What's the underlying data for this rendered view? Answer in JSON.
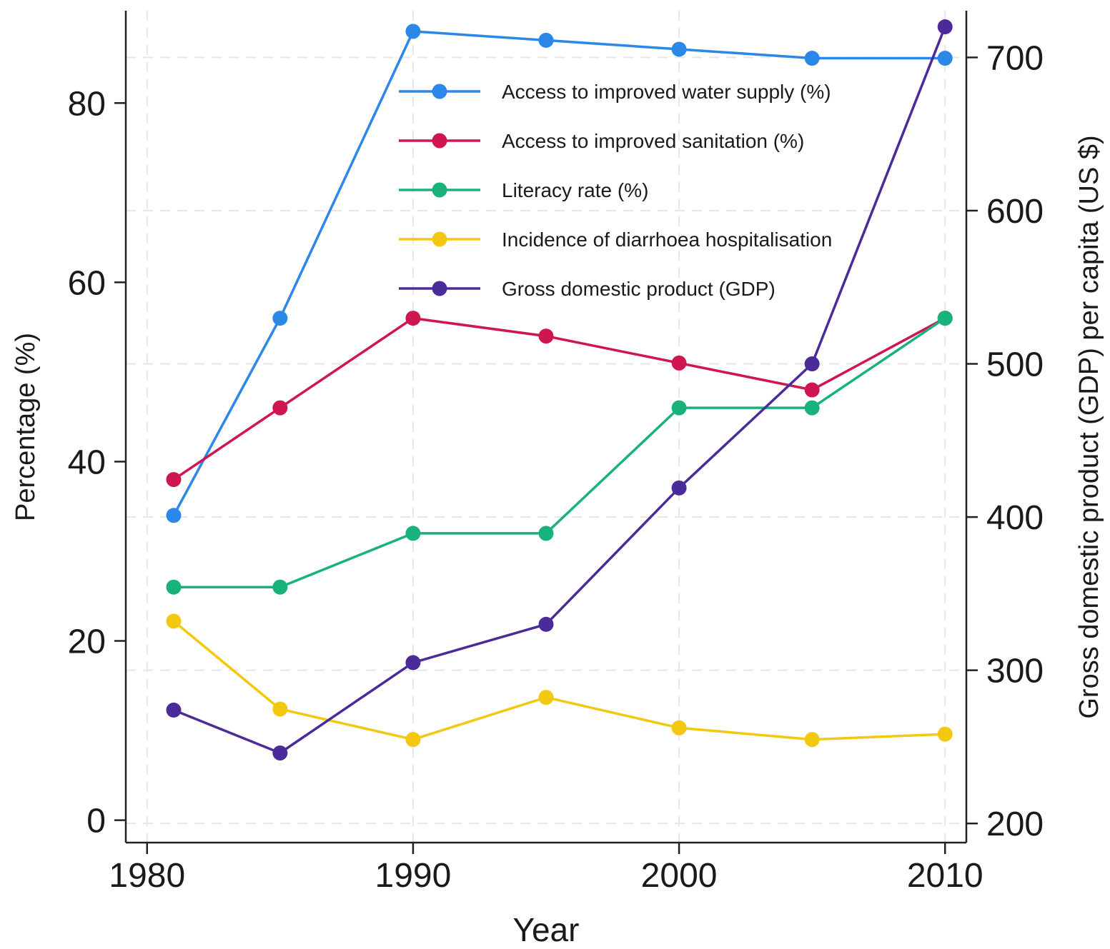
{
  "chart_data": {
    "type": "line",
    "xlabel": "Year",
    "ylabel": "Percentage (%)",
    "y2label": "Gross domestic product (GDP) per capita (US $)",
    "xlim": [
      1979.2,
      2010.8
    ],
    "ylim": [
      -2.5,
      90.3
    ],
    "y2lim": [
      187.5,
      730.5
    ],
    "x_ticks": [
      1980,
      1990,
      2000,
      2010
    ],
    "y_ticks": [
      0,
      20,
      40,
      60,
      80
    ],
    "y2_ticks": [
      200,
      300,
      400,
      500,
      600,
      700
    ],
    "grid": "dashed",
    "legend_position": "top-center",
    "x": [
      1981,
      1985,
      1990,
      1995,
      2000,
      2005,
      2010
    ],
    "series": [
      {
        "name": "Access to improved water supply (%)",
        "axis": "left",
        "color": "#2b87e8",
        "values": [
          34,
          56,
          88,
          87,
          86,
          85,
          85
        ]
      },
      {
        "name": "Access to improved sanitation (%)",
        "axis": "left",
        "color": "#d0164f",
        "values": [
          38,
          46,
          56,
          54,
          51,
          48,
          56
        ]
      },
      {
        "name": "Literacy rate (%)",
        "axis": "left",
        "color": "#19b27b",
        "values": [
          26,
          26,
          32,
          32,
          46,
          46,
          56
        ]
      },
      {
        "name": "Incidence of diarrhoea hospitalisation",
        "axis": "left",
        "color": "#f2c811",
        "values": [
          22.2,
          12.4,
          9,
          13.7,
          10.3,
          9,
          9.6
        ]
      },
      {
        "name": "Gross domestic product (GDP)",
        "axis": "right",
        "color": "#4b2a9a",
        "values": [
          274,
          246,
          305,
          330,
          419,
          500,
          720
        ]
      }
    ]
  }
}
